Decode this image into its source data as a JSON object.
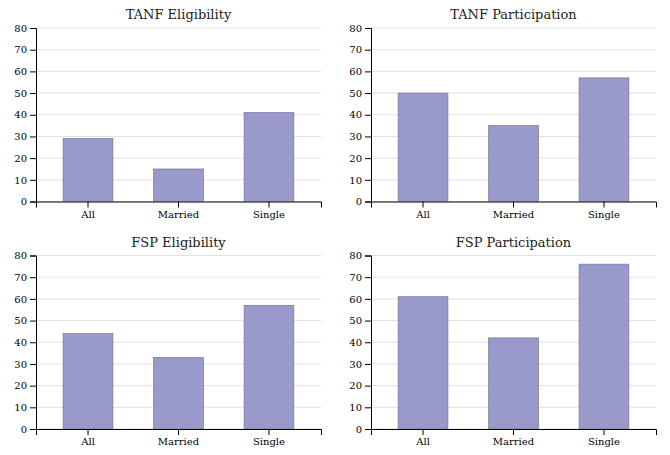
{
  "chart_data": [
    {
      "type": "bar",
      "title": "TANF Eligibility",
      "categories": [
        "All",
        "Married",
        "Single"
      ],
      "values": [
        29,
        15,
        41
      ],
      "color": "#9999cc",
      "ylim": [
        0,
        80
      ],
      "yticks": [
        0,
        10,
        20,
        30,
        40,
        50,
        60,
        70,
        80
      ],
      "grid": true
    },
    {
      "type": "bar",
      "title": "TANF Participation",
      "categories": [
        "All",
        "Married",
        "Single"
      ],
      "values": [
        50,
        35,
        57
      ],
      "color": "#9999cc",
      "ylim": [
        0,
        80
      ],
      "yticks": [
        0,
        10,
        20,
        30,
        40,
        50,
        60,
        70,
        80
      ],
      "grid": true
    },
    {
      "type": "bar",
      "title": "FSP Eligibility",
      "categories": [
        "All",
        "Married",
        "Single"
      ],
      "values": [
        44,
        33,
        57
      ],
      "color": "#9999cc",
      "ylim": [
        0,
        80
      ],
      "yticks": [
        0,
        10,
        20,
        30,
        40,
        50,
        60,
        70,
        80
      ],
      "grid": true
    },
    {
      "type": "bar",
      "title": "FSP Participation",
      "categories": [
        "All",
        "Married",
        "Single"
      ],
      "values": [
        61,
        42,
        76
      ],
      "color": "#9999cc",
      "ylim": [
        0,
        80
      ],
      "yticks": [
        0,
        10,
        20,
        30,
        40,
        50,
        60,
        70,
        80
      ],
      "grid": true
    }
  ]
}
